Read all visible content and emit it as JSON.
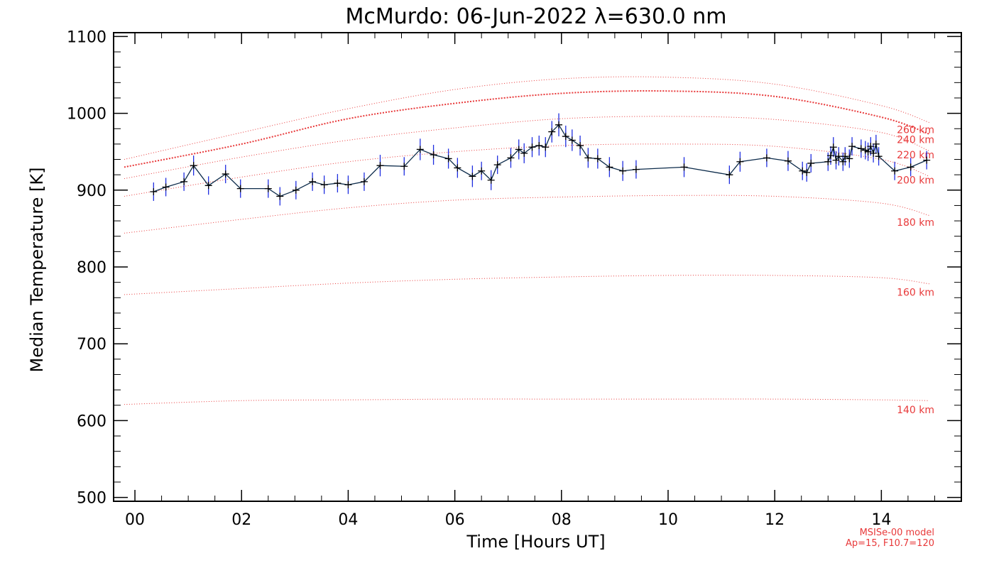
{
  "chart_data": {
    "type": "line",
    "title": "McMurdo: 06-Jun-2022 λ=630.0 nm",
    "xlabel": "Time [Hours UT]",
    "ylabel": "Median Temperature [K]",
    "xlim": [
      -0.4,
      15.5
    ],
    "ylim": [
      495,
      1105
    ],
    "x_ticks": [
      0,
      2,
      4,
      6,
      8,
      10,
      12,
      14
    ],
    "x_tick_labels": [
      "00",
      "02",
      "04",
      "06",
      "08",
      "10",
      "12",
      "14"
    ],
    "y_ticks": [
      500,
      600,
      700,
      800,
      900,
      1000,
      1100
    ],
    "y_tick_labels": [
      "500",
      "600",
      "700",
      "800",
      "900",
      "1000",
      "1100"
    ],
    "colors": {
      "data": "#0b2a4a",
      "errorbar": "#1f2ee0",
      "model": "#e8393a",
      "axes": "#000000"
    },
    "model_curves": [
      {
        "label": "140 km",
        "x": [
          -0.2,
          2,
          4,
          6,
          8,
          10,
          12,
          14,
          14.9
        ],
        "y": [
          621,
          626,
          627,
          628,
          628,
          628,
          628,
          627,
          626
        ]
      },
      {
        "label": "160 km",
        "x": [
          -0.2,
          2,
          4,
          6,
          8,
          10,
          12,
          14,
          14.9
        ],
        "y": [
          764,
          772,
          779,
          784,
          787,
          789,
          789,
          786,
          778
        ]
      },
      {
        "label": "180 km",
        "x": [
          -0.2,
          2,
          4,
          6,
          8,
          10,
          12,
          14,
          14.9
        ],
        "y": [
          844,
          862,
          877,
          887,
          891,
          893,
          892,
          883,
          867
        ]
      },
      {
        "label": "200 km",
        "x": [
          -0.2,
          2,
          4,
          6,
          8,
          10,
          12,
          14,
          14.9
        ],
        "y": [
          892,
          917,
          937,
          950,
          958,
          960,
          957,
          940,
          918
        ]
      },
      {
        "label": "220 km",
        "x": [
          -0.2,
          2,
          4,
          6,
          8,
          10,
          12,
          14,
          14.9
        ],
        "y": [
          915,
          943,
          965,
          981,
          993,
          996,
          992,
          975,
          951
        ]
      },
      {
        "label": "240 km",
        "x": [
          -0.2,
          2,
          4,
          6,
          8,
          10,
          12,
          14,
          14.9
        ],
        "y": [
          930,
          960,
          993,
          1013,
          1026,
          1029,
          1022,
          995,
          973
        ]
      },
      {
        "label": "260 km",
        "x": [
          -0.2,
          2,
          4,
          6,
          8,
          10,
          12,
          14,
          14.9
        ],
        "y": [
          940,
          975,
          1006,
          1031,
          1045,
          1047,
          1038,
          1010,
          988
        ]
      }
    ],
    "model_label_values": [
      {
        "label": "140 km",
        "y": 614
      },
      {
        "label": "160 km",
        "y": 767
      },
      {
        "label": "180 km",
        "y": 858
      },
      {
        "label": "200 km",
        "y": 913
      },
      {
        "label": "220 km",
        "y": 946
      },
      {
        "label": "240 km",
        "y": 966
      },
      {
        "label": "260 km",
        "y": 979
      }
    ],
    "series": [
      {
        "x": [
          0.35,
          0.58,
          0.92,
          1.1,
          1.38,
          1.7,
          1.98,
          2.5,
          2.72,
          3.02,
          3.33,
          3.55,
          3.8,
          4.0,
          4.3,
          4.6,
          5.05,
          5.35,
          5.6,
          5.88,
          6.05,
          6.33,
          6.5,
          6.68,
          6.8,
          7.05,
          7.2,
          7.3,
          7.45,
          7.58,
          7.7,
          7.82,
          7.95,
          8.08,
          8.2,
          8.35,
          8.5,
          8.68,
          8.9,
          9.15,
          9.4,
          10.3,
          11.15,
          11.35,
          11.85,
          12.25,
          12.52,
          12.6,
          12.68,
          13.0,
          13.05,
          13.1,
          13.15,
          13.2,
          13.28,
          13.32,
          13.4,
          13.45,
          13.62,
          13.7,
          13.75,
          13.8,
          13.85,
          13.9,
          13.95,
          14.25,
          14.55,
          14.85
        ],
        "y": [
          898,
          904,
          911,
          932,
          906,
          921,
          902,
          902,
          892,
          900,
          911,
          907,
          909,
          907,
          911,
          932,
          931,
          953,
          946,
          941,
          929,
          918,
          925,
          913,
          933,
          942,
          953,
          948,
          956,
          958,
          956,
          976,
          985,
          970,
          965,
          958,
          942,
          941,
          930,
          925,
          927,
          930,
          920,
          937,
          942,
          938,
          925,
          923,
          935,
          937,
          945,
          956,
          939,
          944,
          937,
          944,
          941,
          957,
          954,
          952,
          950,
          957,
          948,
          960,
          944,
          925,
          930,
          939
        ],
        "errors": [
          12,
          12,
          12,
          13,
          12,
          12,
          12,
          12,
          12,
          12,
          12,
          12,
          12,
          12,
          12,
          14,
          12,
          14,
          13,
          13,
          13,
          14,
          12,
          13,
          12,
          13,
          13,
          13,
          13,
          13,
          13,
          14,
          15,
          14,
          14,
          13,
          13,
          13,
          13,
          13,
          12,
          13,
          12,
          13,
          12,
          13,
          12,
          12,
          12,
          12,
          12,
          13,
          12,
          12,
          12,
          12,
          12,
          12,
          12,
          12,
          12,
          12,
          12,
          12,
          12,
          12,
          12,
          12
        ]
      }
    ],
    "annotation_lines": [
      "MSISe-00 model",
      "Ap=15, F10.7=120"
    ]
  }
}
